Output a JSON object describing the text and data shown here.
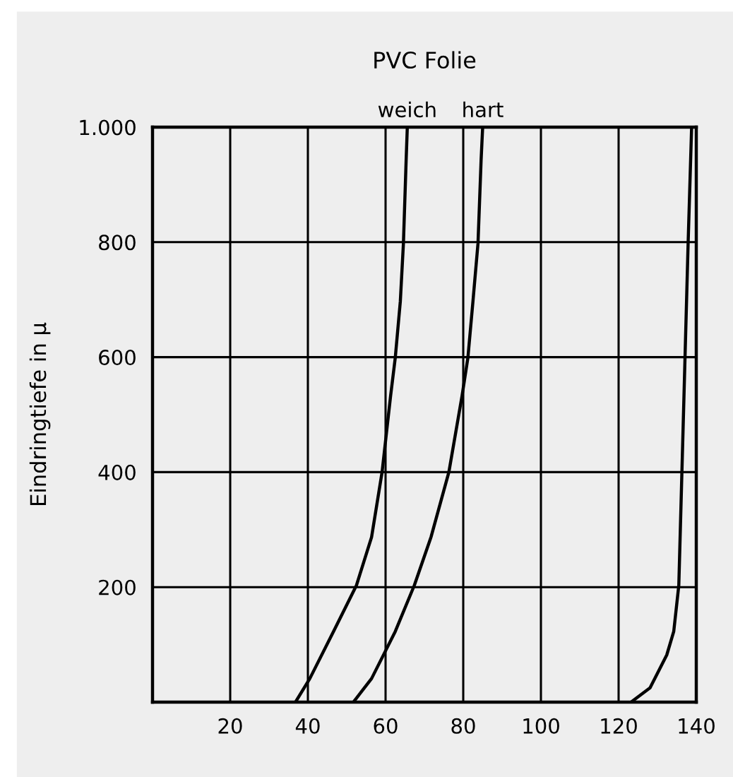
{
  "chart_data": {
    "type": "line",
    "title": "PVC Folie",
    "ylabel": "Eindringtiefe in µ",
    "xlim": [
      0,
      140
    ],
    "xticks": [
      20,
      40,
      60,
      80,
      100,
      120,
      140
    ],
    "ylim": [
      0,
      1000
    ],
    "yticks": [
      200,
      400,
      600,
      800,
      {
        "value": 1000,
        "label": "1.000"
      }
    ],
    "grid": true,
    "marker": "none",
    "line_style": "solid",
    "series": [
      {
        "name": "weich",
        "color": "#000000",
        "x": [
          36.8,
          40.5,
          46.6,
          52.5,
          56.4,
          59.1,
          61.3,
          62.5,
          63.8,
          64.6,
          65.3,
          65.6
        ],
        "values": [
          0,
          41,
          123,
          203,
          287,
          400,
          533,
          599,
          697,
          798,
          943,
          1000
        ]
      },
      {
        "name": "hart",
        "color": "#000000",
        "x": [
          51.7,
          56.4,
          62.5,
          67.4,
          71.7,
          76.3,
          79.7,
          81.2,
          82.5,
          83.8,
          84.6,
          85.0
        ],
        "values": [
          0,
          41,
          123,
          203,
          287,
          400,
          533,
          599,
          697,
          798,
          943,
          1000
        ]
      },
      {
        "color": "#000000",
        "x": [
          123.2,
          128.1,
          132.4,
          134.2,
          135.5,
          136.3,
          137.1,
          137.9,
          138.8
        ],
        "values": [
          0,
          25,
          82,
          123,
          203,
          400,
          599,
          798,
          1000
        ]
      }
    ]
  }
}
